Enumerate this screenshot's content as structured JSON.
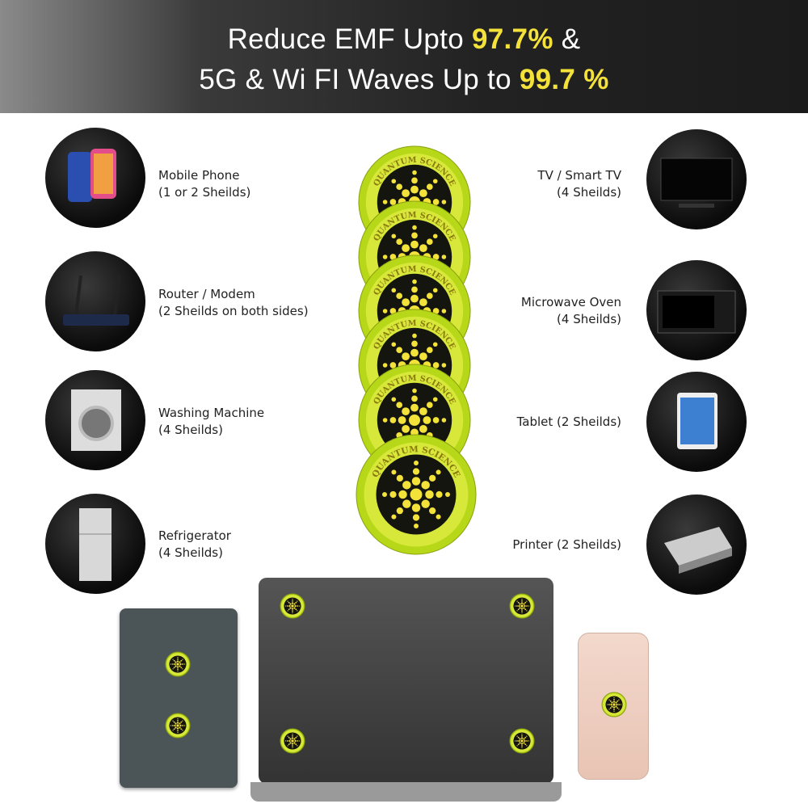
{
  "header": {
    "line1_prefix": "Reduce EMF Upto ",
    "line1_highlight": "97.7%",
    "line1_suffix": " &",
    "line2_prefix": "5G & Wi FI Waves Up to ",
    "line2_highlight": "99.7 %"
  },
  "colors": {
    "accent_yellow": "#f4e23a",
    "sticker_green": "#b6d818",
    "dark": "#111111"
  },
  "left_items": [
    {
      "icon": "mobile-phone-icon",
      "title": "Mobile Phone",
      "detail": "(1 or 2 Sheilds)"
    },
    {
      "icon": "router-icon",
      "title": "Router / Modem",
      "detail": "(2 Sheilds on both sides)"
    },
    {
      "icon": "washing-machine-icon",
      "title": "Washing Machine",
      "detail": "(4 Sheilds)"
    },
    {
      "icon": "refrigerator-icon",
      "title": "Refrigerator",
      "detail": "(4 Sheilds)"
    }
  ],
  "right_items": [
    {
      "icon": "tv-icon",
      "title": "TV / Smart TV",
      "detail": "(4 Sheilds)"
    },
    {
      "icon": "microwave-icon",
      "title": "Microwave Oven",
      "detail": "(4 Sheilds)"
    },
    {
      "icon": "tablet-icon",
      "title": "Tablet (2 Sheilds)",
      "detail": ""
    },
    {
      "icon": "printer-icon",
      "title": "Printer (2 Sheilds)",
      "detail": ""
    }
  ],
  "sticker_logo_text": "QUANTUM SCIENCE"
}
